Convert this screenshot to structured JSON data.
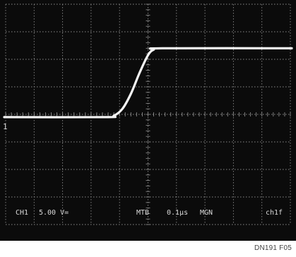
{
  "chart_data": {
    "type": "line",
    "grid": true,
    "grid_divisions": {
      "x": 10,
      "y": 8
    },
    "x_units": "divisions",
    "y_units": "divisions",
    "xlim": [
      0,
      10
    ],
    "ylim": [
      -4,
      4
    ],
    "channel_marker": "1",
    "series": [
      {
        "points": [
          [
            -0.05,
            -0.1
          ],
          [
            3.5,
            -0.1
          ],
          [
            3.8,
            -0.05
          ],
          [
            4.1,
            0.2
          ],
          [
            4.4,
            0.75
          ],
          [
            4.7,
            1.5
          ],
          [
            5.0,
            2.15
          ],
          [
            5.2,
            2.35
          ],
          [
            5.5,
            2.4
          ],
          [
            10.05,
            2.4
          ]
        ]
      }
    ],
    "readout": {
      "ch": "CH1",
      "volts": "5.00 V=",
      "timebase": "MTB",
      "time": "0.1µs",
      "mode": "MGN",
      "trigger": "ch1f"
    }
  },
  "figure_id": "DN191 F05",
  "colors": {
    "screen": "#0b0b0b",
    "grid": "#8a8a8a",
    "trace": "#f4f4f4",
    "readout": "#d9d9d9"
  }
}
